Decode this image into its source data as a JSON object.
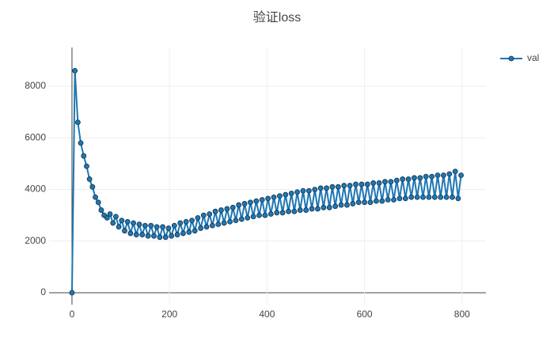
{
  "chart_data": {
    "type": "line",
    "title": "验证loss",
    "x": [
      0,
      6,
      12,
      18,
      24,
      30,
      36,
      42,
      48,
      54,
      60,
      66,
      72,
      78,
      84,
      90,
      96,
      102,
      108,
      114,
      120,
      126,
      132,
      138,
      144,
      150,
      156,
      162,
      168,
      174,
      180,
      186,
      192,
      198,
      204,
      210,
      216,
      222,
      228,
      234,
      240,
      246,
      252,
      258,
      264,
      270,
      276,
      282,
      288,
      294,
      300,
      306,
      312,
      318,
      324,
      330,
      336,
      342,
      348,
      354,
      360,
      366,
      372,
      378,
      384,
      390,
      396,
      402,
      408,
      414,
      420,
      426,
      432,
      438,
      444,
      450,
      456,
      462,
      468,
      474,
      480,
      486,
      492,
      498,
      504,
      510,
      516,
      522,
      528,
      534,
      540,
      546,
      552,
      558,
      564,
      570,
      576,
      582,
      588,
      594,
      600,
      606,
      612,
      618,
      624,
      630,
      636,
      642,
      648,
      654,
      660,
      666,
      672,
      678,
      684,
      690,
      696,
      702,
      708,
      714,
      720,
      726,
      732,
      738,
      744,
      750,
      756,
      762,
      768,
      774,
      780,
      786,
      792,
      798
    ],
    "series": [
      {
        "name": "val",
        "color": "#1f77b4",
        "values": [
          0,
          8600,
          6600,
          5800,
          5300,
          4900,
          4400,
          4100,
          3700,
          3500,
          3200,
          3000,
          2900,
          3050,
          2700,
          2950,
          2550,
          2800,
          2400,
          2750,
          2300,
          2700,
          2250,
          2650,
          2250,
          2600,
          2200,
          2600,
          2200,
          2550,
          2150,
          2550,
          2150,
          2500,
          2200,
          2600,
          2250,
          2700,
          2300,
          2750,
          2350,
          2800,
          2400,
          2900,
          2500,
          3000,
          2550,
          3050,
          2600,
          3150,
          2650,
          3200,
          2700,
          3250,
          2750,
          3300,
          2800,
          3400,
          2850,
          3450,
          2900,
          3500,
          2950,
          3550,
          3000,
          3600,
          3000,
          3650,
          3050,
          3700,
          3100,
          3750,
          3100,
          3800,
          3150,
          3850,
          3150,
          3900,
          3200,
          3950,
          3200,
          3950,
          3250,
          4000,
          3250,
          4050,
          3300,
          4050,
          3300,
          4100,
          3350,
          4100,
          3400,
          4150,
          3400,
          4150,
          3450,
          4200,
          3500,
          4200,
          3500,
          4200,
          3500,
          4250,
          3550,
          4250,
          3550,
          4300,
          3600,
          4300,
          3600,
          4350,
          3650,
          4400,
          3650,
          4400,
          3700,
          4450,
          3700,
          4450,
          3700,
          4500,
          3700,
          4500,
          3700,
          4550,
          3700,
          4550,
          3700,
          4600,
          3700,
          4700,
          3650,
          4550
        ]
      }
    ],
    "xlim": [
      -47,
      849
    ],
    "ylim": [
      -460,
      9500
    ],
    "xticks": [
      0,
      200,
      400,
      600,
      800
    ],
    "yticks": [
      0,
      2000,
      4000,
      6000,
      8000
    ],
    "grid": true,
    "legend": "top-right"
  }
}
